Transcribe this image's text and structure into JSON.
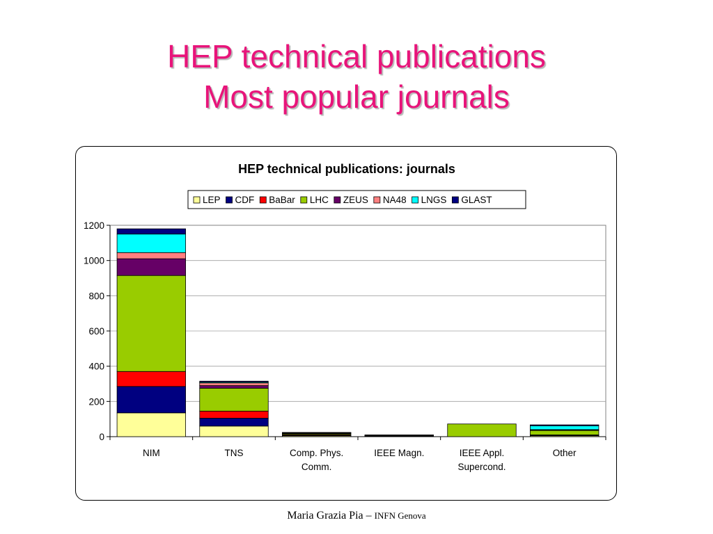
{
  "slide": {
    "title_line1": "HEP technical publications",
    "title_line2": "Most popular journals",
    "footer_author": "Maria Grazia Pia – ",
    "footer_institution": "INFN Genova"
  },
  "chart_data": {
    "type": "bar",
    "stacked": true,
    "title": "HEP technical publications: journals",
    "categories": [
      "NIM",
      "TNS",
      "Comp. Phys. Comm.",
      "IEEE Magn.",
      "IEEE Appl. Supercond.",
      "Other"
    ],
    "category_lines": [
      [
        "NIM"
      ],
      [
        "TNS"
      ],
      [
        "Comp. Phys.",
        "Comm."
      ],
      [
        "IEEE Magn."
      ],
      [
        "IEEE Appl.",
        "Supercond."
      ],
      [
        "Other"
      ]
    ],
    "ylim": [
      0,
      1200
    ],
    "yticks": [
      0,
      200,
      400,
      600,
      800,
      1000,
      1200
    ],
    "grid": true,
    "legend_position": "top",
    "series": [
      {
        "name": "LEP",
        "color": "#ffff99",
        "values": [
          135,
          60,
          5,
          2,
          0,
          5
        ]
      },
      {
        "name": "CDF",
        "color": "#000080",
        "values": [
          150,
          45,
          3,
          2,
          0,
          3
        ]
      },
      {
        "name": "BaBar",
        "color": "#ff0000",
        "values": [
          85,
          40,
          4,
          1,
          0,
          2
        ]
      },
      {
        "name": "LHC",
        "color": "#99cc00",
        "values": [
          545,
          130,
          5,
          3,
          72,
          25
        ]
      },
      {
        "name": "ZEUS",
        "color": "#660066",
        "values": [
          95,
          15,
          3,
          1,
          0,
          3
        ]
      },
      {
        "name": "NA48",
        "color": "#ff8080",
        "values": [
          35,
          15,
          2,
          1,
          0,
          2
        ]
      },
      {
        "name": "LNGS",
        "color": "#00ffff",
        "values": [
          105,
          5,
          1,
          0,
          0,
          22
        ]
      },
      {
        "name": "GLAST",
        "color": "#000080",
        "values": [
          30,
          5,
          1,
          0,
          0,
          5
        ]
      }
    ]
  }
}
